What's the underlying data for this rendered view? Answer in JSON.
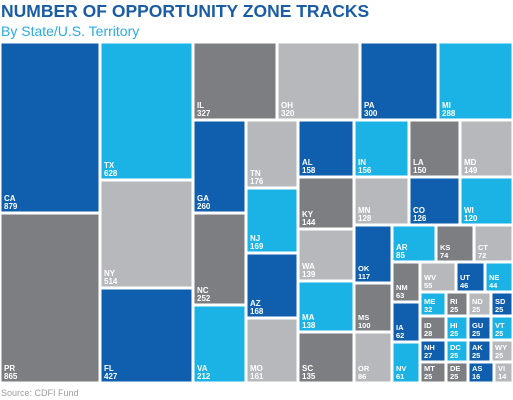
{
  "chart_data": {
    "type": "treemap",
    "title": "NUMBER OF OPPORTUNITY ZONE TRACKS",
    "subtitle": "By State/U.S. Territory",
    "source": "Source: CDFI Fund",
    "categories": [
      "CA",
      "PR",
      "TX",
      "NY",
      "FL",
      "IL",
      "OH",
      "PA",
      "MI",
      "GA",
      "NC",
      "VA",
      "TN",
      "NJ",
      "AZ",
      "MO",
      "AL",
      "IN",
      "LA",
      "MD",
      "KY",
      "WA",
      "MA",
      "SC",
      "MN",
      "CO",
      "WI",
      "OK",
      "MS",
      "OR",
      "AR",
      "KS",
      "CT",
      "NM",
      "IA",
      "NV",
      "WV",
      "UT",
      "NE",
      "ME",
      "ID",
      "NH",
      "MT",
      "RI",
      "ND",
      "SD",
      "HI",
      "GU",
      "VT",
      "DC",
      "AK",
      "WY",
      "DE",
      "AS",
      "VI"
    ],
    "values": [
      879,
      865,
      628,
      514,
      427,
      327,
      320,
      300,
      288,
      260,
      252,
      212,
      176,
      169,
      168,
      161,
      158,
      156,
      150,
      149,
      144,
      139,
      138,
      135,
      128,
      126,
      120,
      117,
      100,
      86,
      85,
      74,
      72,
      63,
      62,
      61,
      55,
      46,
      44,
      32,
      28,
      27,
      25,
      25,
      25,
      25,
      25,
      25,
      25,
      25,
      25,
      25,
      25,
      16,
      14
    ],
    "colors": [
      "#0f5fae",
      "#7c7e81",
      "#1bb3e6",
      "#b6b8bb",
      "#0f5fae",
      "#7c7e81",
      "#b6b8bb",
      "#0f5fae",
      "#1bb3e6",
      "#0f5fae",
      "#7c7e81",
      "#1bb3e6",
      "#b6b8bb",
      "#1bb3e6",
      "#0f5fae",
      "#b6b8bb",
      "#0f5fae",
      "#1bb3e6",
      "#7c7e81",
      "#b6b8bb",
      "#7c7e81",
      "#b6b8bb",
      "#1bb3e6",
      "#7c7e81",
      "#b6b8bb",
      "#0f5fae",
      "#1bb3e6",
      "#0f5fae",
      "#7c7e81",
      "#b6b8bb",
      "#1bb3e6",
      "#7c7e81",
      "#b6b8bb",
      "#7c7e81",
      "#0f5fae",
      "#1bb3e6",
      "#b6b8bb",
      "#0f5fae",
      "#1bb3e6",
      "#1bb3e6",
      "#7c7e81",
      "#0f5fae",
      "#7c7e81",
      "#7c7e81",
      "#b6b8bb",
      "#0f5fae",
      "#1bb3e6",
      "#0f5fae",
      "#1bb3e6",
      "#1bb3e6",
      "#0f5fae",
      "#b6b8bb",
      "#7c7e81",
      "#0f5fae",
      "#b6b8bb"
    ]
  }
}
